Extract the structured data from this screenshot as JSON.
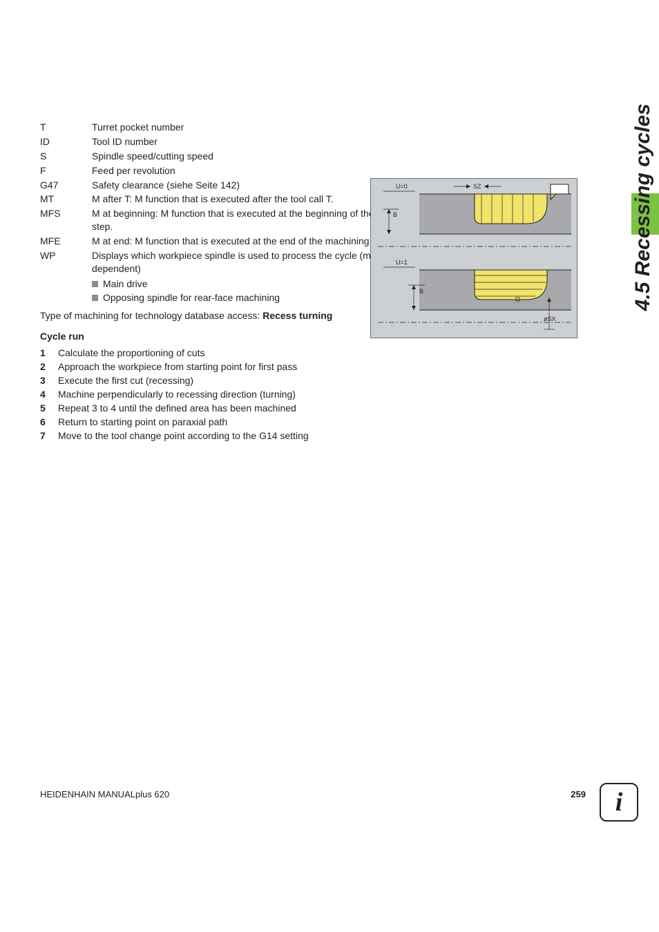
{
  "params": [
    {
      "code": "T",
      "desc": "Turret pocket number"
    },
    {
      "code": "ID",
      "desc": "Tool ID number"
    },
    {
      "code": "S",
      "desc": "Spindle speed/cutting speed"
    },
    {
      "code": "F",
      "desc": "Feed per revolution"
    },
    {
      "code": "G47",
      "desc": "Safety clearance (siehe Seite 142)"
    },
    {
      "code": "MT",
      "desc": "M after T: M function that is executed after the tool call T."
    },
    {
      "code": "MFS",
      "desc": "M at beginning: M function that is executed at the beginning of the machining step."
    },
    {
      "code": "MFE",
      "desc": "M at end: M function that is executed at the end of the machining step."
    },
    {
      "code": "WP",
      "desc": "Displays which workpiece spindle is used to process the cycle (machine-dependent)"
    }
  ],
  "wp_subitems": [
    "Main drive",
    "Opposing spindle for rear-face machining"
  ],
  "db_access_prefix": "Type of machining for technology database access: ",
  "db_access_type": "Recess turning",
  "cycle_run_title": "Cycle run",
  "steps": [
    "Calculate the proportioning of cuts",
    "Approach the workpiece from starting point for first pass",
    "Execute the first cut (recessing)",
    "Machine perpendicularly to recessing direction (turning)",
    "Repeat 3 to 4 until the defined area has been machined",
    "Return to starting point on paraxial path",
    "Move to the tool change point according to the G14 setting"
  ],
  "side_tab": "4.5 Recessing cycles",
  "footer_left": "HEIDENHAIN MANUALplus 620",
  "footer_page": "259",
  "info_glyph": "i",
  "diagram": {
    "labels": {
      "u0": "U=0",
      "u1": "U=1",
      "b": "B",
      "sz": "SZ",
      "sx": "øSX"
    },
    "colors": {
      "bg": "#cdd0d2",
      "part_fill": "#f2e36b",
      "part_stroke": "#231f20",
      "hatch": "#a7a9ac",
      "dim_line": "#231f20",
      "axis": "#231f20",
      "tool_fill": "#ffffff",
      "tool_fill2": "#d4c05a"
    },
    "font_size_label": 9
  }
}
